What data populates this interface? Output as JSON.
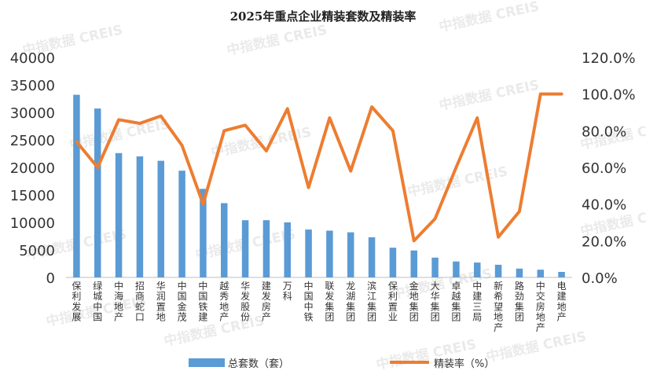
{
  "watermark": "中指数据 CREIS",
  "chart_data": {
    "type": "bar",
    "title": "2025年重点企业精装套数及精装率",
    "categories": [
      "保利发展",
      "绿城中国",
      "中海地产",
      "招商蛇口",
      "华润置地",
      "中国金茂",
      "中国铁建",
      "越秀地产",
      "华发股份",
      "建发房产",
      "万科",
      "中国中铁",
      "联发集团",
      "龙湖集团",
      "滨江集团",
      "保利置业",
      "金地集团",
      "大华集团",
      "卓越集团",
      "中建三局",
      "新希望地产",
      "路劲集团",
      "中交房地产",
      "电建地产"
    ],
    "series": [
      {
        "name": "总套数（套）",
        "type": "bar",
        "axis": "left",
        "color": "#5b9bd5",
        "values": [
          33200,
          30700,
          22600,
          22000,
          21200,
          19400,
          16100,
          13500,
          10400,
          10400,
          10000,
          8700,
          8500,
          8200,
          7300,
          5400,
          4900,
          3600,
          2900,
          2700,
          2300,
          1600,
          1400,
          1000
        ]
      },
      {
        "name": "精装率（%）",
        "type": "line",
        "axis": "right",
        "color": "#ed7d31",
        "values": [
          74,
          60,
          86,
          84,
          88,
          72,
          40,
          80,
          83,
          69,
          92,
          49,
          87,
          58,
          93,
          80,
          20,
          32,
          60,
          87,
          22,
          36,
          100,
          100
        ]
      }
    ],
    "left_axis": {
      "ylim": [
        0,
        40000
      ],
      "ticks": [
        "0",
        "5000",
        "10000",
        "15000",
        "20000",
        "25000",
        "30000",
        "35000",
        "40000"
      ]
    },
    "right_axis": {
      "ylim": [
        0,
        120
      ],
      "ticks": [
        "0.0%",
        "20.0%",
        "40.0%",
        "60.0%",
        "80.0%",
        "100.0%",
        "120.0%"
      ]
    },
    "legend": {
      "position": "bottom",
      "bar_label": "总套数（套）",
      "line_label": "精装率（%）"
    },
    "grid": false
  }
}
